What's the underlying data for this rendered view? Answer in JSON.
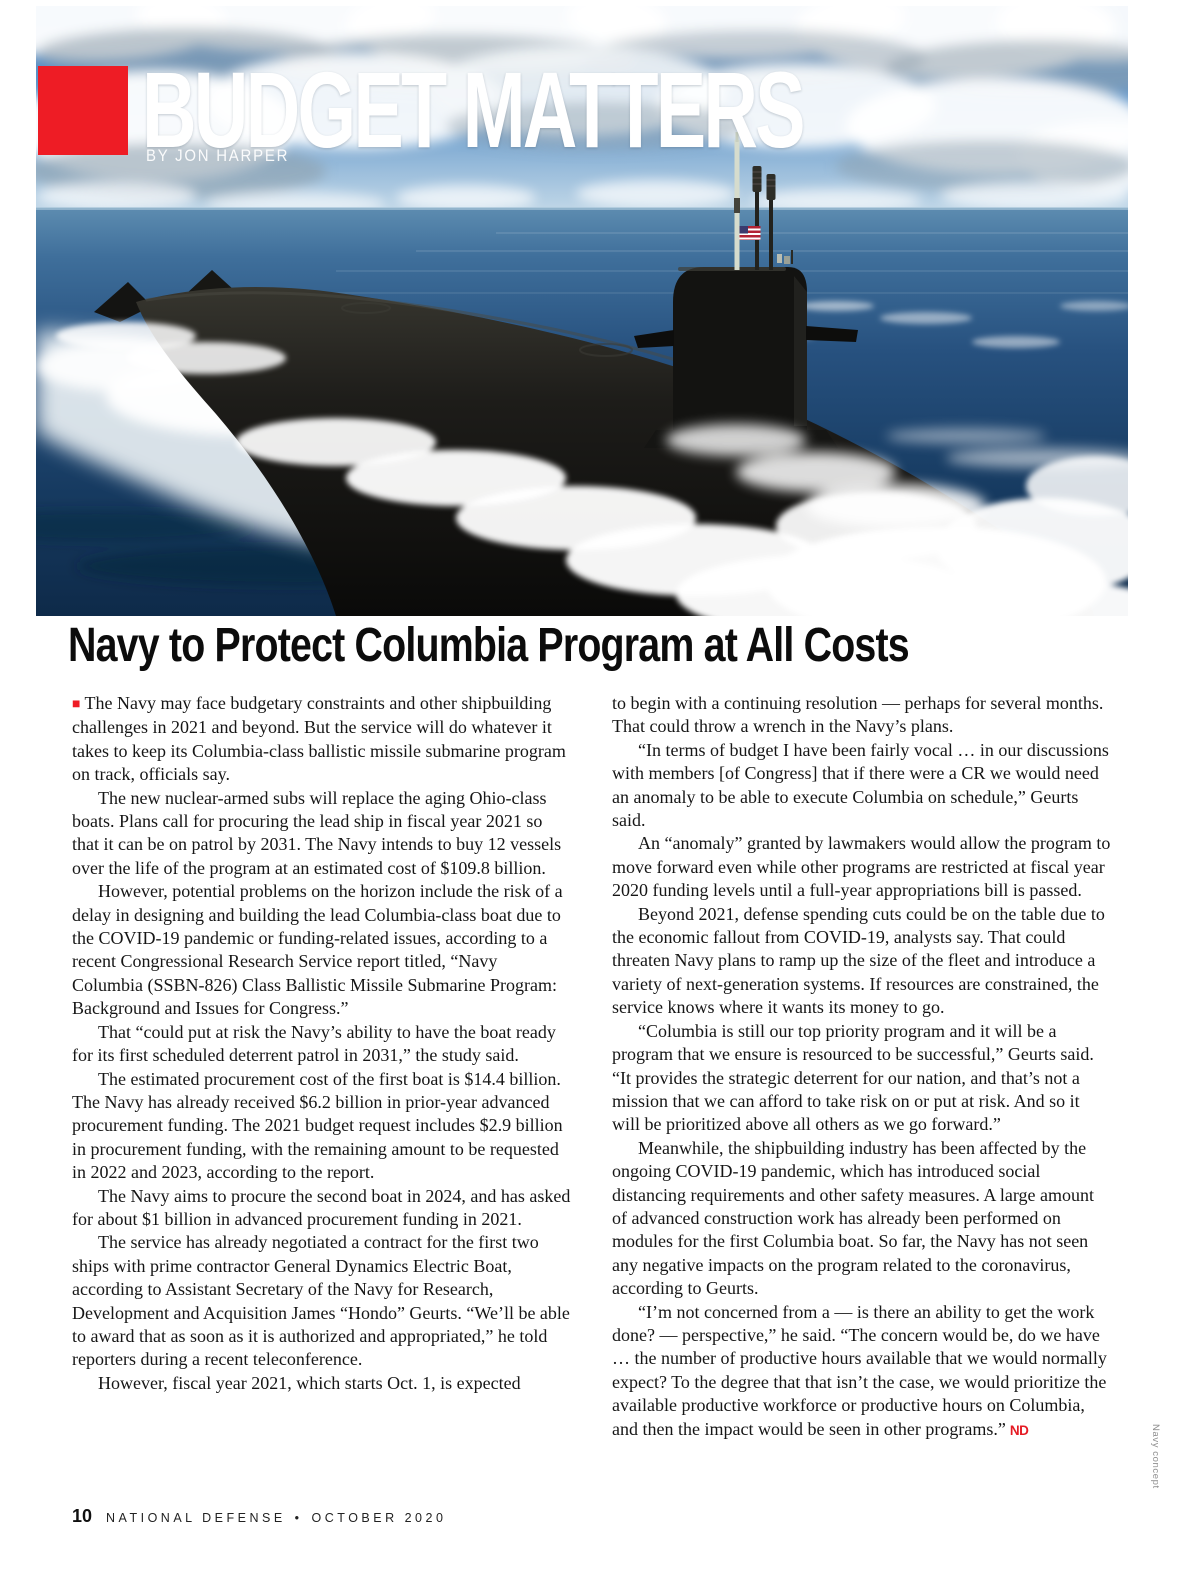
{
  "page": {
    "header": {
      "kicker": "BUDGET MATTERS",
      "byline": "BY JON HARPER"
    },
    "headline": "Navy to Protect Columbia Program at All Costs",
    "article": {
      "left_column": [
        "The Navy may face budgetary constraints and other shipbuilding challenges in 2021 and beyond. But the service will do whatever it takes to keep its Columbia-class ballistic missile submarine program on track, officials say.",
        "The new nuclear-armed subs will replace the aging Ohio-class boats. Plans call for procuring the lead ship in fiscal year 2021 so that it can be on patrol by 2031. The Navy intends to buy 12 vessels over the life of the program at an estimated cost of $109.8 billion.",
        "However, potential problems on the horizon include the risk of a delay in designing and building the lead Columbia-class boat due to the COVID-19 pandemic or funding-related issues, according to a recent Congressional Research Service report titled, “Navy Columbia (SSBN-826) Class Ballistic Missile Submarine Program: Background and Issues for Congress.”",
        "That “could put at risk the Navy’s ability to have the boat ready for its first scheduled deterrent patrol in 2031,” the study said.",
        "The estimated procurement cost of the first boat is $14.4 billion. The Navy has already received $6.2 billion in prior-year advanced procurement funding. The 2021 budget request includes $2.9 billion in procurement funding, with the remaining amount to be requested in 2022 and 2023, according to the report.",
        "The Navy aims to procure the second boat in 2024, and has asked for about $1 billion in advanced procurement funding in 2021.",
        "The service has already negotiated a contract for the first two ships with prime contractor General Dynamics Electric Boat, according to Assistant Secretary of the Navy for Research, Development and Acquisition James “Hondo” Geurts. “We’ll be able to award that as soon as it is authorized and appropriated,” he told reporters during a recent teleconference.",
        "However, fiscal year 2021, which starts Oct. 1, is expected"
      ],
      "right_column": [
        "to begin with a continuing resolution — perhaps for several months. That could throw a wrench in the Navy’s plans.",
        "“In terms of budget I have been fairly vocal … in our discussions with members [of Congress] that if there were a CR we would need an anomaly to be able to execute Columbia on schedule,” Geurts said.",
        "An “anomaly” granted by lawmakers would allow the program to move forward even while other programs are restricted at fiscal year 2020 funding levels until a full-year appropriations bill is passed.",
        "Beyond 2021, defense spending cuts could be on the table due to the economic fallout from COVID-19, analysts say. That could threaten Navy plans to ramp up the size of the fleet and introduce a variety of next-generation systems. If resources are constrained, the service knows where it wants its money to go.",
        "“Columbia is still our top priority program and it will be a program that we ensure is resourced to be successful,” Geurts said. “It provides the strategic deterrent for our nation, and that’s not a mission that we can afford to take risk on or put at risk. And so it will be prioritized above all others as we go forward.”",
        "Meanwhile, the shipbuilding industry has been affected by the ongoing COVID-19 pandemic, which has introduced social distancing requirements and other safety measures. A large amount of advanced construction work has already been performed on modules for the first Columbia boat. So far, the Navy has not seen any negative impacts on the program related to the coronavirus, according to Geurts.",
        "“I’m not concerned from a — is there an ability to get the work done? — perspective,” he said. “The concern would be, do we have … the number of productive hours available that we would normally expect? To the degree that that isn’t the case, we would prioritize the available productive workforce or productive hours on Columbia, and then the impact would be seen in other programs.”"
      ]
    },
    "end_mark": "ND",
    "photo_credit": "Navy concept",
    "footer": {
      "page_number": "10",
      "publication": "NATIONAL DEFENSE",
      "separator": "•",
      "issue": "OCTOBER 2020"
    },
    "colors": {
      "accent_red": "#ee1c25"
    }
  }
}
